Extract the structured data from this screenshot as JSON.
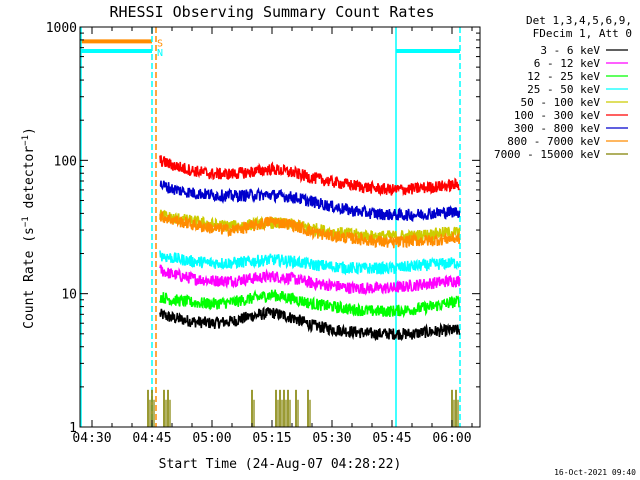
{
  "chart_data": {
    "type": "line",
    "title": "RHESSI Observing Summary Count Rates",
    "xlabel": "Start Time (24-Aug-07 04:28:22)",
    "ylabel": "Count Rate (s⁻¹ detector⁻¹)",
    "ylabel_parts": [
      "Count Rate (s",
      "−1",
      " detector",
      "−1",
      ")"
    ],
    "y_scale": "log",
    "ylim": [
      1,
      1000
    ],
    "xlim": [
      "04:27",
      "06:07"
    ],
    "x_ticks": [
      "04:30",
      "04:45",
      "05:00",
      "05:15",
      "05:30",
      "05:45",
      "06:00"
    ],
    "y_ticks": [
      "1",
      "10",
      "100",
      "1000"
    ],
    "legend_header": [
      "Det 1,3,4,5,6,9,",
      "FDecim 1, Att 0"
    ],
    "legend_position": "right",
    "timestamp": "16-Oct-2021 09:40",
    "flag_labels": {
      "saa": "S",
      "night": "N"
    },
    "flags": [
      {
        "label": "S",
        "color": "#ff8c00",
        "level": 780,
        "intervals": [
          [
            "04:27",
            "04:45"
          ]
        ]
      },
      {
        "label": "N",
        "color": "#00ffff",
        "level": 660,
        "intervals": [
          [
            "04:27",
            "04:45"
          ],
          [
            "05:46",
            "06:02"
          ]
        ]
      }
    ],
    "vertical_lines": [
      {
        "time": "04:27",
        "style": "solid",
        "color": "#00ffff"
      },
      {
        "time": "04:45",
        "style": "dashed",
        "color": "#00ffff"
      },
      {
        "time": "04:46",
        "style": "dashed",
        "color": "#ff8c00"
      },
      {
        "time": "05:46",
        "style": "solid",
        "color": "#00ffff"
      },
      {
        "time": "06:02",
        "style": "dashed",
        "color": "#00ffff"
      }
    ],
    "series": [
      {
        "name": "3 - 6 keV",
        "color": "#000000",
        "x": [
          "04:47",
          "04:50",
          "04:55",
          "05:00",
          "05:05",
          "05:10",
          "05:15",
          "05:20",
          "05:25",
          "05:30",
          "05:35",
          "05:40",
          "05:45",
          "05:50",
          "05:55",
          "06:00",
          "06:02"
        ],
        "y": [
          7.0,
          6.6,
          6.2,
          6.0,
          6.2,
          6.8,
          7.2,
          6.6,
          5.8,
          5.4,
          5.2,
          5.0,
          5.0,
          5.0,
          5.2,
          5.3,
          5.3
        ]
      },
      {
        "name": "6 - 12 keV",
        "color": "#ff00ff",
        "x": [
          "04:47",
          "04:50",
          "04:55",
          "05:00",
          "05:05",
          "05:10",
          "05:15",
          "05:20",
          "05:25",
          "05:30",
          "05:35",
          "05:40",
          "05:45",
          "05:50",
          "05:55",
          "06:00",
          "06:02"
        ],
        "y": [
          15.0,
          14.0,
          13.0,
          12.5,
          12.5,
          13.0,
          13.5,
          13.0,
          12.0,
          11.5,
          11.0,
          11.0,
          11.0,
          11.5,
          12.0,
          12.5,
          12.5
        ]
      },
      {
        "name": "12 - 25 keV",
        "color": "#00ff00",
        "x": [
          "04:47",
          "04:50",
          "04:55",
          "05:00",
          "05:05",
          "05:10",
          "05:15",
          "05:20",
          "05:25",
          "05:30",
          "05:35",
          "05:40",
          "05:45",
          "05:50",
          "05:55",
          "06:00",
          "06:02"
        ],
        "y": [
          9.5,
          9.0,
          8.6,
          8.4,
          8.6,
          9.2,
          9.8,
          9.2,
          8.4,
          8.0,
          7.6,
          7.4,
          7.4,
          7.6,
          8.0,
          8.6,
          8.8
        ]
      },
      {
        "name": "25 - 50 keV",
        "color": "#00ffff",
        "x": [
          "04:47",
          "04:50",
          "04:55",
          "05:00",
          "05:05",
          "05:10",
          "05:15",
          "05:20",
          "05:25",
          "05:30",
          "05:35",
          "05:40",
          "05:45",
          "05:50",
          "05:55",
          "06:00",
          "06:02"
        ],
        "y": [
          19.5,
          18.5,
          17.5,
          17.0,
          17.0,
          17.5,
          18.0,
          17.5,
          16.5,
          16.0,
          15.5,
          15.5,
          15.5,
          16.0,
          16.5,
          17.0,
          17.0
        ]
      },
      {
        "name": "50 - 100 keV",
        "color": "#cccc00",
        "x": [
          "04:47",
          "04:50",
          "04:55",
          "05:00",
          "05:05",
          "05:10",
          "05:15",
          "05:20",
          "05:25",
          "05:30",
          "05:35",
          "05:40",
          "05:45",
          "05:50",
          "05:55",
          "06:00",
          "06:02"
        ],
        "y": [
          39,
          37,
          35,
          33,
          32,
          33,
          34,
          33,
          31,
          29,
          28,
          27,
          27,
          27,
          28,
          29,
          29
        ]
      },
      {
        "name": "100 - 300 keV",
        "color": "#ff0000",
        "x": [
          "04:47",
          "04:50",
          "04:55",
          "05:00",
          "05:05",
          "05:10",
          "05:15",
          "05:20",
          "05:25",
          "05:30",
          "05:35",
          "05:40",
          "05:45",
          "05:50",
          "05:55",
          "06:00",
          "06:02"
        ],
        "y": [
          100,
          92,
          84,
          79,
          79,
          82,
          86,
          81,
          74,
          69,
          65,
          62,
          60,
          61,
          63,
          65,
          66
        ]
      },
      {
        "name": "300 - 800 keV",
        "color": "#0000cc",
        "x": [
          "04:47",
          "04:50",
          "04:55",
          "05:00",
          "05:05",
          "05:10",
          "05:15",
          "05:20",
          "05:25",
          "05:30",
          "05:35",
          "05:40",
          "05:45",
          "05:50",
          "05:55",
          "06:00",
          "06:02"
        ],
        "y": [
          66,
          61,
          57,
          55,
          54,
          55,
          55,
          53,
          49,
          45,
          42,
          40,
          39,
          39,
          40,
          41,
          41
        ]
      },
      {
        "name": "800 - 7000 keV",
        "color": "#ff8c00",
        "x": [
          "04:47",
          "04:50",
          "04:55",
          "05:00",
          "05:05",
          "05:10",
          "05:15",
          "05:20",
          "05:25",
          "05:30",
          "05:35",
          "05:40",
          "05:45",
          "05:50",
          "05:55",
          "06:00",
          "06:02"
        ],
        "y": [
          38,
          36,
          33,
          31,
          30,
          32,
          35,
          33,
          29,
          27,
          26,
          25,
          24,
          25,
          25,
          26,
          26
        ]
      },
      {
        "name": "7000 - 15000 keV",
        "color": "#808000",
        "spikes": [
          "04:44",
          "04:45",
          "04:48",
          "04:49",
          "05:10",
          "05:16",
          "05:17",
          "05:18",
          "05:19",
          "05:21",
          "05:24",
          "06:00",
          "06:01"
        ]
      }
    ]
  }
}
